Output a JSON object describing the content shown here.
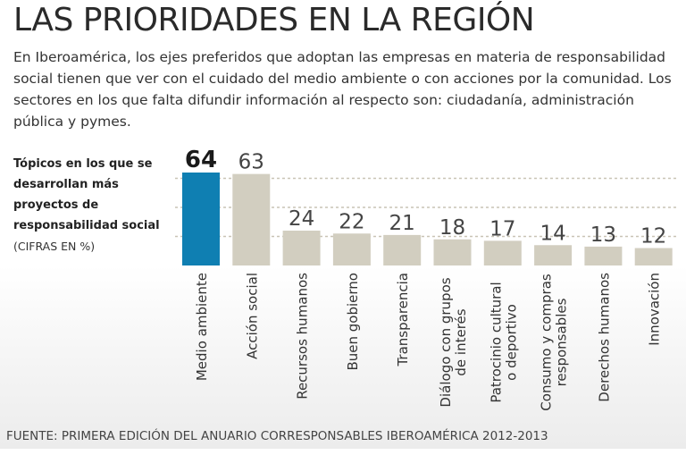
{
  "title": "LAS PRIORIDADES EN LA REGIÓN",
  "intro": "En Iberoamérica, los ejes preferidos que adoptan las empresas en materia de responsabilidad social tienen que ver con el cuidado del medio ambiente o con acciones por la comunidad. Los sectores en los que falta difundir información al respecto son: ciudadanía, administración pública y pymes.",
  "side_label": "Tópicos en los que se desarrollan más proyectos de responsabilidad social",
  "side_note": "(CIFRAS EN %)",
  "source": "FUENTE: PRIMERA EDICIÓN DEL ANUARIO CORRESPONSABLES IBEROAMÉRICA 2012-2013",
  "colors": {
    "highlight": "#0f7fb2",
    "bar": "#d2cec0",
    "gridline": "#c9c4b6",
    "text": "#2b2b2b",
    "shade": "#ececec"
  },
  "chart_data": {
    "type": "bar",
    "title": "Tópicos en los que se desarrollan más proyectos de responsabilidad social",
    "ylabel": "(CIFRAS EN %)",
    "ylim": [
      0,
      70
    ],
    "highlight_index": 0,
    "categories": [
      [
        "Medio ambiente"
      ],
      [
        "Acción social"
      ],
      [
        "Recursos humanos"
      ],
      [
        "Buen gobierno"
      ],
      [
        "Transparencia"
      ],
      [
        "Diálogo con grupos",
        "de interés"
      ],
      [
        "Patrocinio cultural",
        "o deportivo"
      ],
      [
        "Consumo y compras",
        "responsables"
      ],
      [
        "Derechos humanos"
      ],
      [
        "Innovación"
      ]
    ],
    "values": [
      64,
      63,
      24,
      22,
      21,
      18,
      17,
      14,
      13,
      12
    ]
  }
}
